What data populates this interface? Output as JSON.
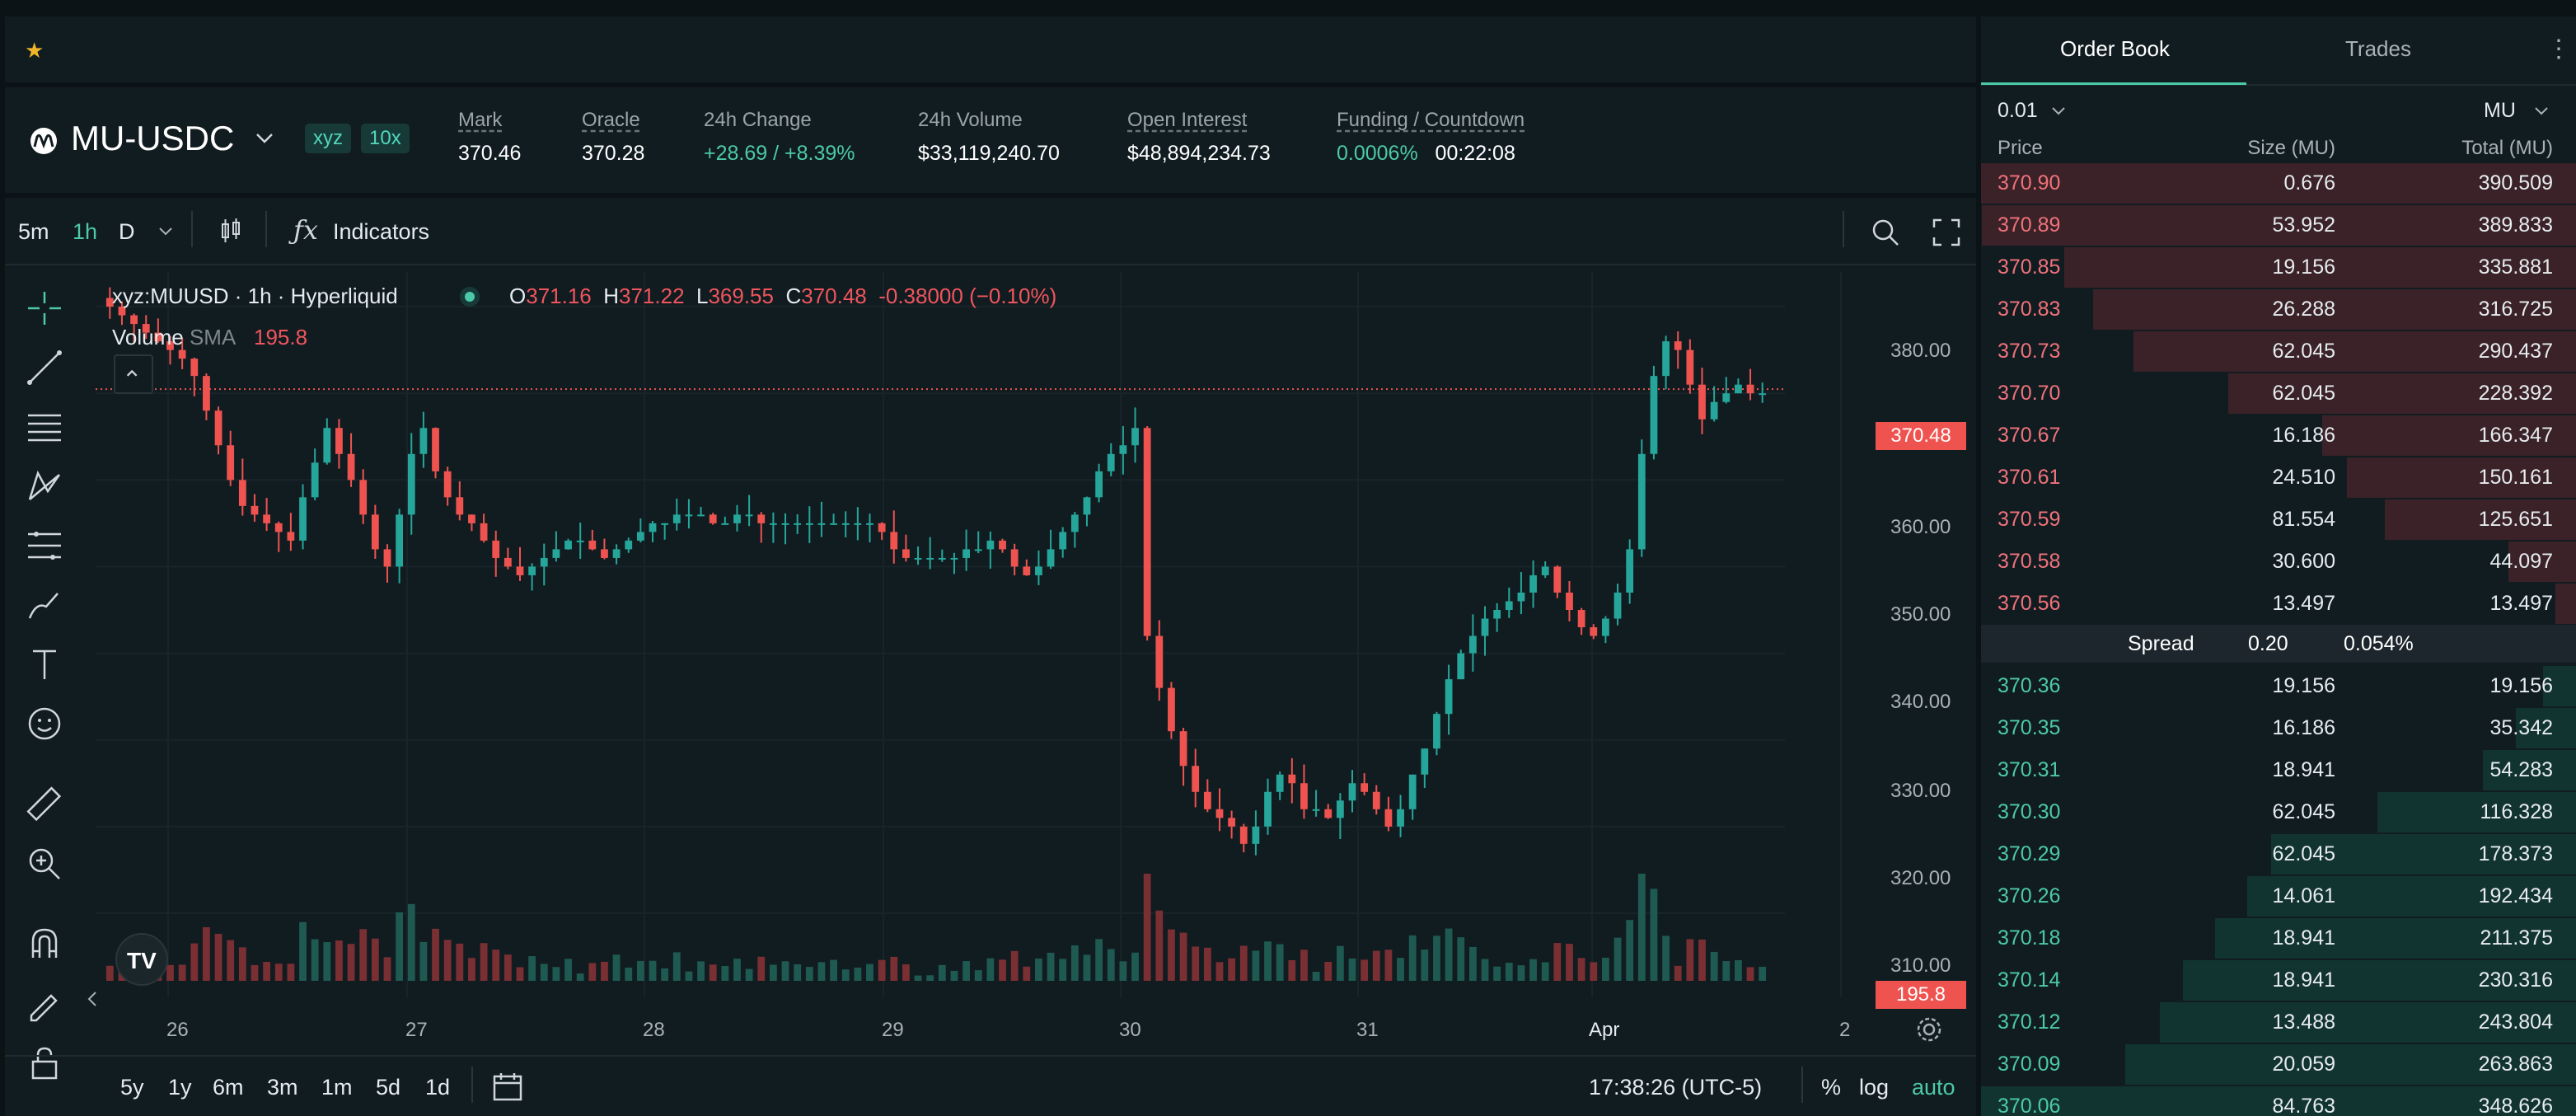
{
  "header": {
    "star_icon": "star-icon"
  },
  "market": {
    "pair": "MU-USDC",
    "tag_dex": "xyz",
    "tag_leverage": "10x",
    "stats": [
      {
        "label": "Mark",
        "value": "370.46"
      },
      {
        "label": "Oracle",
        "value": "370.28"
      },
      {
        "label": "24h Change",
        "value": "+28.69 / +8.39%"
      },
      {
        "label": "24h Volume",
        "value": "$33,119,240.70"
      },
      {
        "label": "Open Interest",
        "value": "$48,894,234.73"
      },
      {
        "label": "Funding / Countdown",
        "value": "0.0006%",
        "value2": "00:22:08"
      }
    ]
  },
  "chart_toolbar": {
    "timeframes": [
      "5m",
      "1h",
      "D"
    ],
    "active_timeframe": "1h",
    "indicators_label": "Indicators"
  },
  "chart_legend": {
    "title": "xyz:MUUSD · 1h · Hyperliquid",
    "o_label": "O",
    "o": "371.16",
    "h_label": "H",
    "h": "371.22",
    "l_label": "L",
    "l": "369.55",
    "c_label": "C",
    "c": "370.48",
    "change": "-0.38000 (−0.10%)",
    "volume_label": "Volume",
    "sma_label": "SMA",
    "volume_value": "195.8"
  },
  "chart_data": {
    "type": "candlestick",
    "x_ticks": [
      "26",
      "27",
      "28",
      "29",
      "30",
      "31",
      "Apr",
      "2"
    ],
    "y_ticks": [
      "380.00",
      "370.00",
      "360.00",
      "350.00",
      "340.00",
      "330.00",
      "320.00",
      "310.00"
    ],
    "ylim": [
      306,
      384
    ],
    "last_price": "370.48",
    "last_volume": "195.8",
    "candles_approx_close": [
      380,
      379,
      378,
      377,
      376,
      375,
      374,
      372,
      368,
      364,
      360,
      357,
      356,
      355,
      354,
      353,
      358,
      362,
      366,
      363,
      360,
      356,
      352,
      350,
      356,
      363,
      366,
      361,
      358,
      356,
      355,
      353,
      351,
      350,
      349,
      350,
      351,
      352,
      353,
      353,
      352,
      351,
      352,
      353,
      354,
      355,
      355,
      356,
      356,
      356,
      355,
      355,
      356,
      356,
      355,
      355,
      355,
      355,
      355,
      355,
      355,
      355,
      355,
      355,
      354,
      352,
      351,
      351,
      351,
      351,
      351,
      352,
      352,
      353,
      352,
      350,
      349,
      350,
      352,
      354,
      356,
      358,
      361,
      363,
      364,
      366,
      342,
      336,
      331,
      327,
      324,
      322,
      321,
      320,
      318,
      320,
      324,
      326,
      325,
      322,
      322,
      321,
      323,
      325,
      324,
      322,
      320,
      322,
      326,
      329,
      333,
      337,
      340,
      342,
      344,
      345,
      346,
      347,
      349,
      350,
      347,
      345,
      343,
      342,
      344,
      347,
      352,
      363,
      372,
      376,
      375,
      371,
      367,
      369,
      370,
      371,
      370,
      370
    ],
    "volume_note": "Volume histogram bars beneath candles"
  },
  "chart_bottom": {
    "ranges": [
      "5y",
      "1y",
      "6m",
      "3m",
      "1m",
      "5d",
      "1d"
    ],
    "time": "17:38:26 (UTC-5)",
    "percent_label": "%",
    "log_label": "log",
    "auto_label": "auto"
  },
  "orderbook": {
    "tabs": [
      "Order Book",
      "Trades"
    ],
    "tick": "0.01",
    "unit": "MU",
    "headers": {
      "price": "Price",
      "size": "Size (MU)",
      "total": "Total (MU)"
    },
    "asks": [
      {
        "price": "370.90",
        "size": "0.676",
        "total": "390.509",
        "depth": 1.0
      },
      {
        "price": "370.89",
        "size": "53.952",
        "total": "389.833",
        "depth": 0.998
      },
      {
        "price": "370.85",
        "size": "19.156",
        "total": "335.881",
        "depth": 0.86
      },
      {
        "price": "370.83",
        "size": "26.288",
        "total": "316.725",
        "depth": 0.811
      },
      {
        "price": "370.73",
        "size": "62.045",
        "total": "290.437",
        "depth": 0.744
      },
      {
        "price": "370.70",
        "size": "62.045",
        "total": "228.392",
        "depth": 0.585
      },
      {
        "price": "370.67",
        "size": "16.186",
        "total": "166.347",
        "depth": 0.426
      },
      {
        "price": "370.61",
        "size": "24.510",
        "total": "150.161",
        "depth": 0.385
      },
      {
        "price": "370.59",
        "size": "81.554",
        "total": "125.651",
        "depth": 0.322
      },
      {
        "price": "370.58",
        "size": "30.600",
        "total": "44.097",
        "depth": 0.113
      },
      {
        "price": "370.56",
        "size": "13.497",
        "total": "13.497",
        "depth": 0.035
      }
    ],
    "spread_label": "Spread",
    "spread_value": "0.20",
    "spread_pct": "0.054%",
    "bids": [
      {
        "price": "370.36",
        "size": "19.156",
        "total": "19.156",
        "depth": 0.055
      },
      {
        "price": "370.35",
        "size": "16.186",
        "total": "35.342",
        "depth": 0.101
      },
      {
        "price": "370.31",
        "size": "18.941",
        "total": "54.283",
        "depth": 0.156
      },
      {
        "price": "370.30",
        "size": "62.045",
        "total": "116.328",
        "depth": 0.334
      },
      {
        "price": "370.29",
        "size": "62.045",
        "total": "178.373",
        "depth": 0.512
      },
      {
        "price": "370.26",
        "size": "14.061",
        "total": "192.434",
        "depth": 0.552
      },
      {
        "price": "370.18",
        "size": "18.941",
        "total": "211.375",
        "depth": 0.606
      },
      {
        "price": "370.14",
        "size": "18.941",
        "total": "230.316",
        "depth": 0.661
      },
      {
        "price": "370.12",
        "size": "13.488",
        "total": "243.804",
        "depth": 0.699
      },
      {
        "price": "370.09",
        "size": "20.059",
        "total": "263.863",
        "depth": 0.757
      },
      {
        "price": "370.06",
        "size": "84.763",
        "total": "348.626",
        "depth": 1.0
      }
    ]
  },
  "colors": {
    "up": "#26a69a",
    "down": "#ef5350",
    "accent": "#4cc9a8"
  }
}
